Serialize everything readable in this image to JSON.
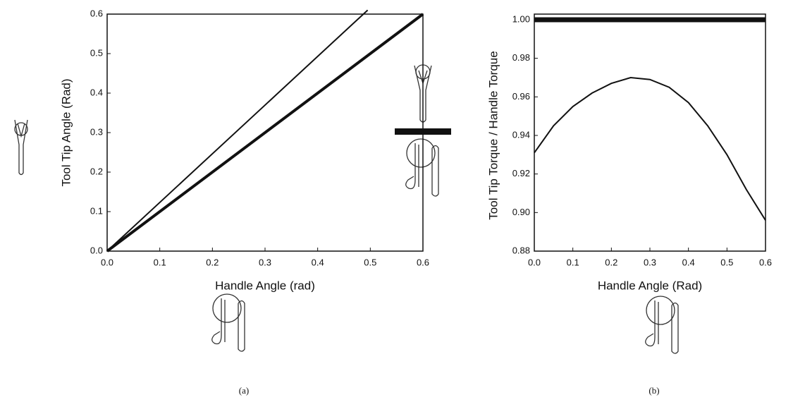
{
  "chart_data": [
    {
      "type": "line",
      "xlabel": "Handle Angle (rad)",
      "ylabel": "Tool Tip Angle (Rad)",
      "caption": "(a)",
      "xlim": [
        0,
        0.6
      ],
      "ylim": [
        0,
        0.6
      ],
      "xticks": [
        {
          "value": 0,
          "label": "0.0"
        },
        0.1,
        0.2,
        0.3,
        0.4,
        0.5,
        0.6
      ],
      "yticks": [
        {
          "value": 0,
          "label": "0.0"
        },
        0.1,
        0.2,
        0.3,
        0.4,
        0.5,
        0.6
      ],
      "series": [
        {
          "color": "#111111",
          "width": 2,
          "x": [
            0,
            0.495
          ],
          "values": [
            0,
            0.61
          ]
        },
        {
          "color": "#111111",
          "width": 4,
          "x": [
            0,
            0.6
          ],
          "values": [
            0,
            0.6
          ]
        }
      ]
    },
    {
      "type": "line",
      "xlabel": "Handle Angle (Rad)",
      "ylabel": "Tool Tip Torque / Handle Torque",
      "caption": "(b)",
      "xlim": [
        0,
        0.6
      ],
      "ylim": [
        0.88,
        1.0
      ],
      "xticks": [
        {
          "value": 0,
          "label": "0.0"
        },
        0.1,
        0.2,
        0.3,
        0.4,
        0.5,
        0.6
      ],
      "yticks": [
        0.88,
        {
          "value": 0.9,
          "label": "0.90"
        },
        0.92,
        0.94,
        0.96,
        0.98,
        {
          "value": 1,
          "label": "1.00"
        }
      ],
      "series": [
        {
          "color": "#111111",
          "width": 7,
          "x": [
            0,
            0.6
          ],
          "values": [
            1.0,
            1.0
          ]
        },
        {
          "color": "#111111",
          "width": 2,
          "x": [
            0,
            0.05,
            0.1,
            0.15,
            0.2,
            0.25,
            0.3,
            0.35,
            0.4,
            0.45,
            0.5,
            0.55,
            0.6
          ],
          "values": [
            0.931,
            0.945,
            0.955,
            0.962,
            0.967,
            0.97,
            0.969,
            0.965,
            0.957,
            0.945,
            0.93,
            0.912,
            0.896
          ]
        }
      ]
    }
  ]
}
